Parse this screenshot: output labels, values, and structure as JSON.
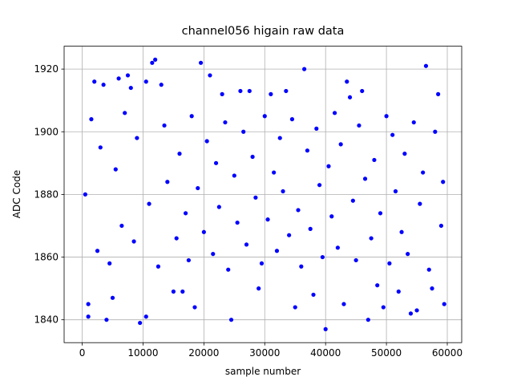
{
  "chart_data": {
    "type": "scatter",
    "title": "channel056 higain raw data",
    "xlabel": "sample number",
    "ylabel": "ADC Code",
    "xlim": [
      -2970,
      62370
    ],
    "ylim": [
      1832.7,
      1927.3
    ],
    "xticks": [
      0,
      10000,
      20000,
      30000,
      40000,
      50000,
      60000
    ],
    "yticks": [
      1840,
      1860,
      1880,
      1900,
      1920
    ],
    "grid": true,
    "series": [
      {
        "color": "#0000ff",
        "x": [
          11500,
          12000,
          19500,
          36500,
          56500,
          7500,
          21000,
          6000,
          10500,
          2000,
          40000,
          9500,
          24500,
          4000,
          47000,
          1000,
          10500,
          1000,
          59500,
          18500,
          35000,
          49500,
          54000,
          55000,
          43000,
          13000,
          33500,
          43500,
          3500,
          26000,
          46000,
          15000,
          29000,
          38000,
          52000,
          57500,
          5000,
          31000,
          44000,
          8000,
          23000,
          27500,
          16500,
          48500,
          58500,
          500,
          1500,
          2500,
          3000,
          4500,
          5500,
          6500,
          7000,
          8500,
          9000,
          11000,
          12500,
          13500,
          14000,
          15500,
          16000,
          17000,
          17500,
          18000,
          19000,
          20000,
          20500,
          21500,
          22000,
          22500,
          23500,
          24000,
          25000,
          25500,
          26500,
          27000,
          28000,
          28500,
          29500,
          30000,
          30500,
          31500,
          32000,
          32500,
          33000,
          34000,
          34500,
          35500,
          36000,
          37000,
          37500,
          38500,
          39000,
          39500,
          40500,
          41000,
          41500,
          42000,
          42500,
          44500,
          45000,
          45500,
          46500,
          47500,
          48000,
          49000,
          50000,
          50500,
          51000,
          51500,
          52500,
          53000,
          53500,
          54500,
          55500,
          56000,
          57000,
          58000,
          59000,
          59300
        ],
        "y": [
          1922,
          1923,
          1922,
          1920,
          1921,
          1918,
          1918,
          1917,
          1916,
          1916,
          1837,
          1839,
          1840,
          1840,
          1840,
          1841,
          1841,
          1845,
          1845,
          1844,
          1844,
          1844,
          1842,
          1843,
          1845,
          1915,
          1913,
          1916,
          1915,
          1913,
          1913,
          1849,
          1850,
          1848,
          1849,
          1850,
          1847,
          1912,
          1911,
          1914,
          1912,
          1913,
          1849,
          1851,
          1912,
          1880,
          1904,
          1862,
          1895,
          1858,
          1888,
          1870,
          1906,
          1865,
          1898,
          1877,
          1857,
          1902,
          1884,
          1866,
          1893,
          1874,
          1859,
          1905,
          1882,
          1868,
          1897,
          1861,
          1890,
          1876,
          1903,
          1856,
          1886,
          1871,
          1900,
          1864,
          1892,
          1879,
          1858,
          1905,
          1872,
          1887,
          1862,
          1898,
          1881,
          1867,
          1904,
          1875,
          1857,
          1894,
          1869,
          1901,
          1883,
          1860,
          1889,
          1873,
          1906,
          1863,
          1896,
          1878,
          1859,
          1902,
          1885,
          1866,
          1891,
          1874,
          1905,
          1858,
          1899,
          1881,
          1868,
          1893,
          1861,
          1903,
          1877,
          1887,
          1856,
          1900,
          1870,
          1884
        ]
      }
    ]
  }
}
